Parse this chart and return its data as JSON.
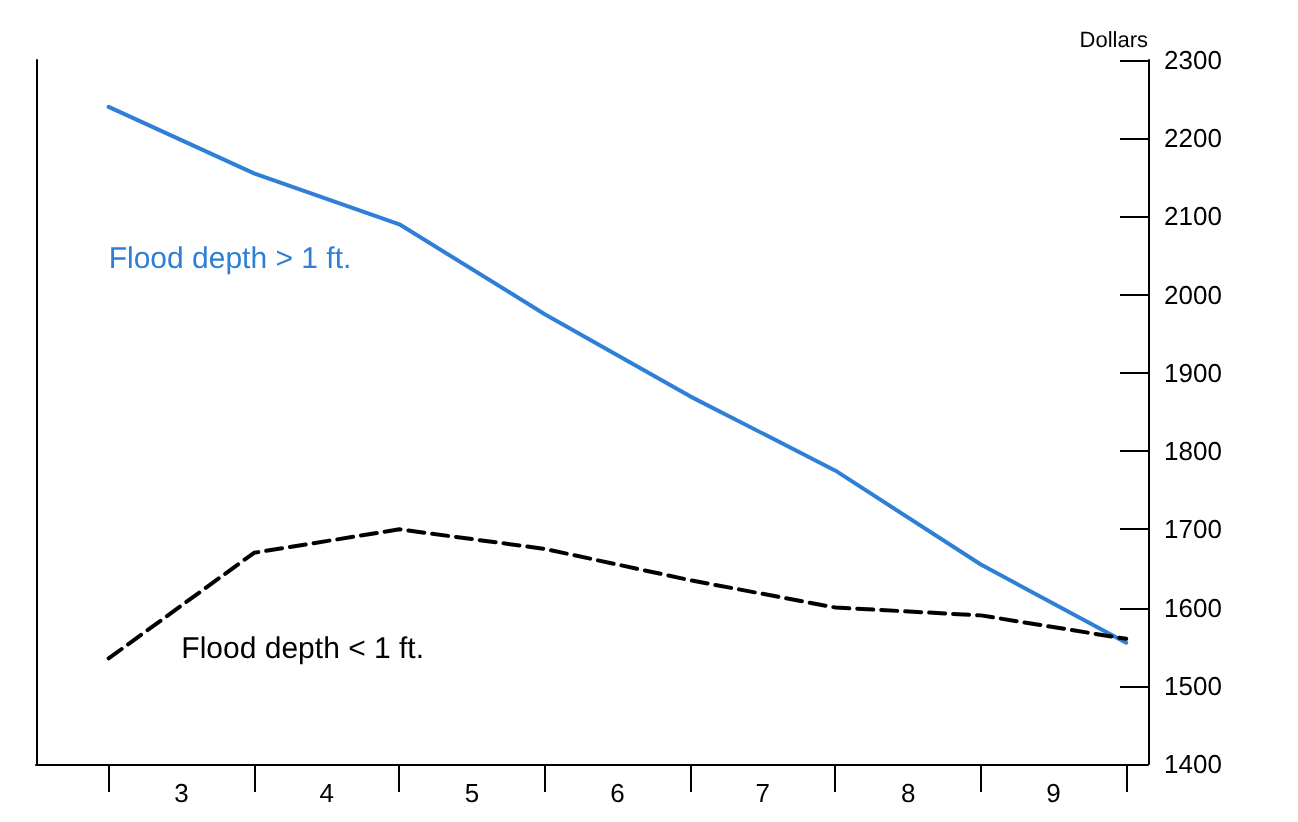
{
  "chart_data": {
    "type": "line",
    "ylabel": "Dollars",
    "x": [
      2.5,
      3.5,
      4.5,
      5.5,
      6.5,
      7.5,
      8.5,
      9.5
    ],
    "series": [
      {
        "name": "Flood depth > 1 ft.",
        "color": "#2f7fd6",
        "values": [
          2240,
          2155,
          2090,
          1975,
          1870,
          1775,
          1655,
          1555
        ],
        "line_style": "solid"
      },
      {
        "name": "Flood depth < 1 ft.",
        "color": "#000000",
        "values": [
          1535,
          1670,
          1700,
          1675,
          1635,
          1600,
          1590,
          1560
        ],
        "line_style": "dashed"
      }
    ],
    "xlim": [
      2,
      9.65
    ],
    "xticks": [
      {
        "value": 2.5,
        "label": null
      },
      {
        "value": 3,
        "label": "3"
      },
      {
        "value": 3.5,
        "label": null
      },
      {
        "value": 4,
        "label": "4"
      },
      {
        "value": 4.5,
        "label": null
      },
      {
        "value": 5,
        "label": "5"
      },
      {
        "value": 5.5,
        "label": null
      },
      {
        "value": 6,
        "label": "6"
      },
      {
        "value": 6.5,
        "label": null
      },
      {
        "value": 7,
        "label": "7"
      },
      {
        "value": 7.5,
        "label": null
      },
      {
        "value": 8,
        "label": "8"
      },
      {
        "value": 8.5,
        "label": null
      },
      {
        "value": 9,
        "label": "9"
      },
      {
        "value": 9.5,
        "label": null
      }
    ],
    "ylim": [
      1400,
      2300
    ],
    "yticks": [
      1400,
      1500,
      1600,
      1700,
      1800,
      1900,
      2000,
      2100,
      2200,
      2300
    ],
    "grid": false,
    "marker": "none"
  }
}
